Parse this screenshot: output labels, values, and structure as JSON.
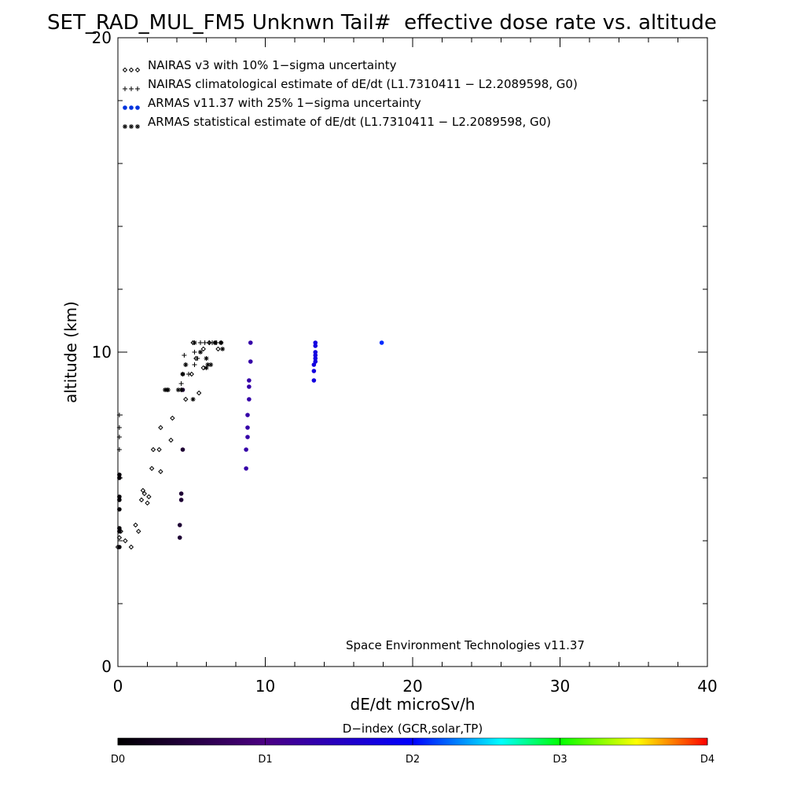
{
  "chart_data": {
    "type": "scatter",
    "title": "SET_RAD_MUL_FM5 Unknwn Tail#  effective dose rate vs. altitude",
    "xlabel": "dE/dt microSv/h",
    "ylabel": "altitude (km)",
    "xlim": [
      0,
      40
    ],
    "ylim": [
      0,
      20
    ],
    "x_ticks": [
      "0",
      "10",
      "20",
      "30",
      "40"
    ],
    "y_ticks": [
      "0",
      "10",
      "20"
    ],
    "grid": false,
    "legend_position": "top-left",
    "credit": "Space Environment Technologies v11.37",
    "colorbar": {
      "title": "D−index (GCR,solar,TP)",
      "labels": [
        {
          "text": "D0",
          "value": 0
        },
        {
          "text": "D1",
          "value": 1
        },
        {
          "text": "D2",
          "value": 2
        },
        {
          "text": "D3",
          "value": 3
        },
        {
          "text": "D4",
          "value": 4
        }
      ],
      "colors": [
        "#000000",
        "#4b0082",
        "#0000ff",
        "#00ffff",
        "#00ff00",
        "#ffff00",
        "#ff0000"
      ]
    },
    "series": [
      {
        "name": "NAIRAS v3 with 10% 1−sigma uncertainty",
        "marker": "diamond",
        "color": "#000000",
        "points": [
          [
            0.0,
            3.8
          ],
          [
            0.1,
            4.1
          ],
          [
            0.2,
            4.3
          ],
          [
            0.5,
            4.0
          ],
          [
            0.9,
            3.8
          ],
          [
            1.2,
            4.5
          ],
          [
            1.4,
            4.3
          ],
          [
            1.6,
            5.3
          ],
          [
            1.7,
            5.6
          ],
          [
            1.8,
            5.5
          ],
          [
            2.0,
            5.2
          ],
          [
            2.1,
            5.4
          ],
          [
            2.3,
            6.3
          ],
          [
            2.4,
            6.9
          ],
          [
            2.8,
            6.9
          ],
          [
            2.9,
            6.2
          ],
          [
            2.9,
            7.6
          ],
          [
            3.6,
            7.2
          ],
          [
            3.7,
            7.9
          ],
          [
            4.4,
            9.3
          ],
          [
            4.6,
            8.5
          ],
          [
            5.0,
            9.3
          ],
          [
            5.1,
            10.3
          ],
          [
            5.3,
            9.8
          ],
          [
            5.5,
            8.7
          ],
          [
            5.8,
            9.5
          ],
          [
            5.8,
            10.1
          ],
          [
            6.2,
            10.3
          ],
          [
            6.6,
            10.3
          ],
          [
            6.8,
            10.1
          ],
          [
            7.0,
            10.3
          ]
        ]
      },
      {
        "name": "NAIRAS climatological estimate of dE/dt (L1.7310411 − L2.2089598, G0)",
        "marker": "plus",
        "color": "#000000",
        "points": [
          [
            0.1,
            8.0
          ],
          [
            0.1,
            7.6
          ],
          [
            0.1,
            7.3
          ],
          [
            0.1,
            6.9
          ],
          [
            3.2,
            8.8
          ],
          [
            3.4,
            8.8
          ],
          [
            4.3,
            9.0
          ],
          [
            4.5,
            9.9
          ],
          [
            4.6,
            9.6
          ],
          [
            4.8,
            9.3
          ],
          [
            5.2,
            10.0
          ],
          [
            5.2,
            9.6
          ],
          [
            5.4,
            9.8
          ],
          [
            5.6,
            10.3
          ],
          [
            5.9,
            10.3
          ],
          [
            6.2,
            10.3
          ],
          [
            6.4,
            10.3
          ],
          [
            6.7,
            10.3
          ]
        ]
      },
      {
        "name": "ARMAS v11.37 with 25% 1−sigma uncertainty",
        "marker": "dot",
        "color": "#0000ff",
        "points": [
          {
            "x": 0.1,
            "y": 3.8,
            "d": 0.05
          },
          {
            "x": 0.1,
            "y": 4.3,
            "d": 0.05
          },
          {
            "x": 0.1,
            "y": 4.4,
            "d": 0.05
          },
          {
            "x": 0.1,
            "y": 5.0,
            "d": 0.05
          },
          {
            "x": 0.1,
            "y": 5.3,
            "d": 0.05
          },
          {
            "x": 0.1,
            "y": 5.4,
            "d": 0.05
          },
          {
            "x": 0.1,
            "y": 6.0,
            "d": 0.05
          },
          {
            "x": 0.1,
            "y": 6.1,
            "d": 0.05
          },
          {
            "x": 4.2,
            "y": 4.1,
            "d": 0.4
          },
          {
            "x": 4.2,
            "y": 4.5,
            "d": 0.4
          },
          {
            "x": 4.3,
            "y": 5.3,
            "d": 0.4
          },
          {
            "x": 4.3,
            "y": 5.5,
            "d": 0.4
          },
          {
            "x": 4.4,
            "y": 6.9,
            "d": 0.4
          },
          {
            "x": 4.4,
            "y": 8.8,
            "d": 0.4
          },
          {
            "x": 8.7,
            "y": 6.3,
            "d": 1.3
          },
          {
            "x": 8.7,
            "y": 6.9,
            "d": 1.3
          },
          {
            "x": 8.8,
            "y": 7.3,
            "d": 1.3
          },
          {
            "x": 8.8,
            "y": 7.6,
            "d": 1.3
          },
          {
            "x": 8.8,
            "y": 8.0,
            "d": 1.3
          },
          {
            "x": 8.9,
            "y": 8.5,
            "d": 1.3
          },
          {
            "x": 8.9,
            "y": 8.9,
            "d": 1.3
          },
          {
            "x": 8.9,
            "y": 9.1,
            "d": 1.3
          },
          {
            "x": 9.0,
            "y": 9.7,
            "d": 1.3
          },
          {
            "x": 9.0,
            "y": 10.3,
            "d": 1.3
          },
          {
            "x": 13.3,
            "y": 9.1,
            "d": 1.75
          },
          {
            "x": 13.3,
            "y": 9.4,
            "d": 1.75
          },
          {
            "x": 13.3,
            "y": 9.6,
            "d": 1.75
          },
          {
            "x": 13.4,
            "y": 9.7,
            "d": 1.75
          },
          {
            "x": 13.4,
            "y": 9.8,
            "d": 1.75
          },
          {
            "x": 13.4,
            "y": 9.9,
            "d": 1.75
          },
          {
            "x": 13.4,
            "y": 10.0,
            "d": 1.75
          },
          {
            "x": 13.4,
            "y": 10.2,
            "d": 1.75
          },
          {
            "x": 13.4,
            "y": 10.3,
            "d": 1.75
          },
          {
            "x": 17.9,
            "y": 10.3,
            "d": 2.1
          }
        ]
      },
      {
        "name": "ARMAS statistical estimate of dE/dt (L1.7310411 − L2.2089598, G0)",
        "marker": "asterisk",
        "color": "#000000",
        "points": [
          [
            3.2,
            8.8
          ],
          [
            3.3,
            8.8
          ],
          [
            3.4,
            8.8
          ],
          [
            4.1,
            8.8
          ],
          [
            4.3,
            8.8
          ],
          [
            4.4,
            9.3
          ],
          [
            4.6,
            9.6
          ],
          [
            5.1,
            8.5
          ],
          [
            5.2,
            10.3
          ],
          [
            5.6,
            10.0
          ],
          [
            6.0,
            9.5
          ],
          [
            6.0,
            9.8
          ],
          [
            6.1,
            9.6
          ],
          [
            6.3,
            9.6
          ],
          [
            6.6,
            10.3
          ],
          [
            7.1,
            10.1
          ],
          [
            7.0,
            10.3
          ]
        ]
      }
    ]
  }
}
